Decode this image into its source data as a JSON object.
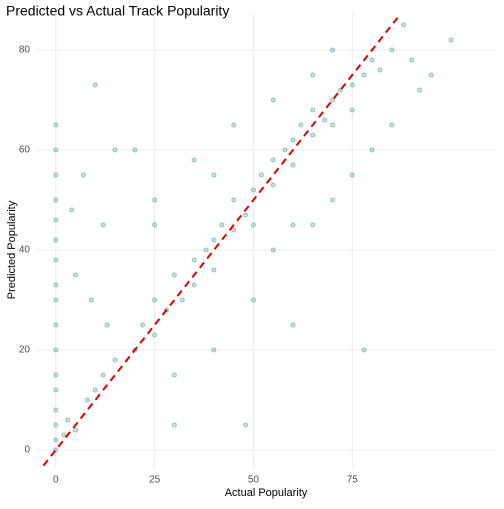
{
  "chart_data": {
    "type": "scatter",
    "title": "Predicted vs Actual Track Popularity",
    "x_label": "Actual Popularity",
    "y_label": "Predicted Popularity",
    "color": "#5f9ea0",
    "line_color": "#e00000",
    "reference_line": {
      "slope": 1,
      "intercept": 0
    },
    "xlim": [
      -5,
      111.6
    ],
    "ylim": [
      -3.6,
      87.2
    ],
    "xticks": [
      0,
      25,
      50,
      75
    ],
    "yticks": [
      0,
      20,
      40,
      60,
      80
    ],
    "grid": true,
    "x": [
      0,
      0,
      0,
      0,
      0,
      0,
      0,
      0,
      0,
      0,
      0,
      0,
      0,
      0,
      0,
      0,
      0,
      2,
      3,
      5,
      5,
      8,
      10,
      10,
      12,
      7,
      4,
      13,
      15,
      15,
      9,
      12,
      20,
      22,
      25,
      25,
      28,
      30,
      32,
      35,
      35,
      38,
      40,
      40,
      42,
      45,
      45,
      48,
      50,
      50,
      52,
      55,
      55,
      58,
      60,
      60,
      62,
      65,
      65,
      68,
      70,
      70,
      72,
      75,
      75,
      78,
      80,
      82,
      85,
      88,
      90,
      92,
      20,
      25,
      30,
      35,
      40,
      45,
      50,
      55,
      60,
      65,
      70,
      75,
      80,
      85,
      30,
      48,
      78,
      60,
      25,
      40,
      55,
      65,
      70,
      100,
      95
    ],
    "y": [
      0,
      2,
      5,
      8,
      12,
      15,
      20,
      25,
      30,
      33,
      38,
      42,
      46,
      50,
      55,
      60,
      65,
      3,
      6,
      4,
      35,
      10,
      12,
      73,
      15,
      55,
      48,
      25,
      18,
      60,
      30,
      45,
      20,
      25,
      23,
      30,
      28,
      35,
      30,
      38,
      33,
      40,
      42,
      36,
      45,
      44,
      50,
      47,
      52,
      45,
      55,
      53,
      58,
      60,
      57,
      62,
      65,
      63,
      68,
      66,
      70,
      65,
      72,
      73,
      68,
      75,
      78,
      76,
      80,
      85,
      78,
      72,
      60,
      50,
      15,
      58,
      20,
      65,
      30,
      40,
      45,
      45,
      50,
      55,
      60,
      65,
      5,
      5,
      20,
      25,
      45,
      55,
      70,
      75,
      80,
      82,
      75
    ]
  }
}
